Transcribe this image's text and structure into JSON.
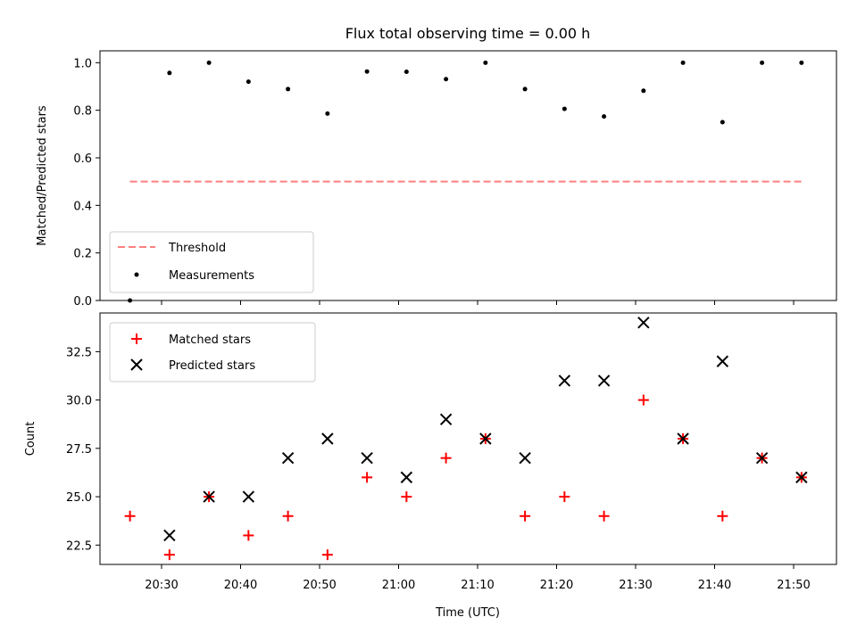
{
  "chart_data": [
    {
      "type": "scatter",
      "title": "Flux total observing time = 0.00 h",
      "xlabel": "",
      "ylabel": "Matched/Predicted stars",
      "ylim": [
        0.0,
        1.05
      ],
      "yticks": [
        "0.0",
        "0.2",
        "0.4",
        "0.6",
        "0.8",
        "1.0"
      ],
      "legend_position": "lower-left",
      "series": [
        {
          "name": "Threshold",
          "style": "dashed-line",
          "color": "#ff7f7f",
          "points": [
            [
              "20:26",
              0.5
            ],
            [
              "21:51",
              0.5
            ]
          ]
        },
        {
          "name": "Measurements",
          "style": "dot",
          "color": "#000000",
          "points": [
            [
              "20:26",
              0.0
            ],
            [
              "20:31",
              0.957
            ],
            [
              "20:36",
              1.0
            ],
            [
              "20:41",
              0.92
            ],
            [
              "20:46",
              0.889
            ],
            [
              "20:51",
              0.786
            ],
            [
              "20:56",
              0.963
            ],
            [
              "21:01",
              0.962
            ],
            [
              "21:06",
              0.931
            ],
            [
              "21:11",
              1.0
            ],
            [
              "21:16",
              0.889
            ],
            [
              "21:21",
              0.806
            ],
            [
              "21:26",
              0.774
            ],
            [
              "21:31",
              0.882
            ],
            [
              "21:36",
              1.0
            ],
            [
              "21:41",
              0.75
            ],
            [
              "21:46",
              1.0
            ],
            [
              "21:51",
              1.0
            ]
          ]
        }
      ]
    },
    {
      "type": "scatter",
      "title": "",
      "xlabel": "Time (UTC)",
      "ylabel": "Count",
      "ylim": [
        21.5,
        34.5
      ],
      "yticks": [
        "22.5",
        "25.0",
        "27.5",
        "30.0",
        "32.5"
      ],
      "xticks": [
        "20:30",
        "20:40",
        "20:50",
        "21:00",
        "21:10",
        "21:20",
        "21:30",
        "21:40",
        "21:50"
      ],
      "legend_position": "top-left",
      "series": [
        {
          "name": "Matched stars",
          "marker": "+",
          "color": "#ff0000",
          "points": [
            [
              "20:26",
              24
            ],
            [
              "20:31",
              22
            ],
            [
              "20:36",
              25
            ],
            [
              "20:41",
              23
            ],
            [
              "20:46",
              24
            ],
            [
              "20:51",
              22
            ],
            [
              "20:56",
              26
            ],
            [
              "21:01",
              25
            ],
            [
              "21:06",
              27
            ],
            [
              "21:11",
              28
            ],
            [
              "21:16",
              24
            ],
            [
              "21:21",
              25
            ],
            [
              "21:26",
              24
            ],
            [
              "21:31",
              30
            ],
            [
              "21:36",
              28
            ],
            [
              "21:41",
              24
            ],
            [
              "21:46",
              27
            ],
            [
              "21:51",
              26
            ]
          ]
        },
        {
          "name": "Predicted stars",
          "marker": "x",
          "color": "#000000",
          "points": [
            [
              "20:31",
              23
            ],
            [
              "20:36",
              25
            ],
            [
              "20:41",
              25
            ],
            [
              "20:46",
              27
            ],
            [
              "20:51",
              28
            ],
            [
              "20:56",
              27
            ],
            [
              "21:01",
              26
            ],
            [
              "21:06",
              29
            ],
            [
              "21:11",
              28
            ],
            [
              "21:16",
              27
            ],
            [
              "21:21",
              31
            ],
            [
              "21:26",
              31
            ],
            [
              "21:31",
              34
            ],
            [
              "21:36",
              28
            ],
            [
              "21:41",
              32
            ],
            [
              "21:46",
              27
            ],
            [
              "21:51",
              26
            ]
          ]
        }
      ]
    }
  ]
}
